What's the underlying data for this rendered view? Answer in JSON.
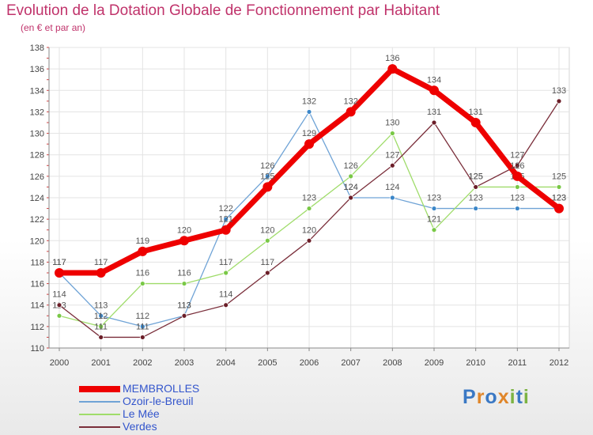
{
  "title": "Evolution de la Dotation Globale de Fonctionnement par Habitant",
  "subtitle": "(en € et par an)",
  "logo": {
    "letters": [
      {
        "ch": "P",
        "color": "#3a78c4"
      },
      {
        "ch": "r",
        "color": "#e0862a"
      },
      {
        "ch": "o",
        "color": "#3a78c4"
      },
      {
        "ch": "x",
        "color": "#e0862a"
      },
      {
        "ch": "i",
        "color": "#7cb342"
      },
      {
        "ch": "t",
        "color": "#3a78c4"
      },
      {
        "ch": "i",
        "color": "#7cb342"
      }
    ]
  },
  "chart_data": {
    "type": "line",
    "title": "Evolution de la Dotation Globale de Fonctionnement par Habitant",
    "subtitle": "(en € et par an)",
    "x": [
      "2000",
      "2001",
      "2002",
      "2003",
      "2004",
      "2005",
      "2006",
      "2007",
      "2008",
      "2009",
      "2010",
      "2011",
      "2012"
    ],
    "ylim": [
      110,
      138
    ],
    "yticks": [
      110,
      112,
      114,
      116,
      118,
      120,
      122,
      124,
      126,
      128,
      130,
      132,
      134,
      136,
      138
    ],
    "grid": true,
    "legend": "bottom-left",
    "series": [
      {
        "name": "MEMBROLLES",
        "color": "#ee0000",
        "values": [
          117,
          117,
          119,
          120,
          121,
          125,
          129,
          132,
          136,
          134,
          131,
          126,
          123
        ]
      },
      {
        "name": "Ozoir-le-Breuil",
        "color": "#6fa3d6",
        "marker": "#3b86c8",
        "values": [
          117,
          113,
          112,
          113,
          122,
          126,
          132,
          124,
          124,
          123,
          123,
          123,
          123
        ]
      },
      {
        "name": "Le Mée",
        "color": "#9fdc6a",
        "marker": "#79c846",
        "values": [
          113,
          112,
          116,
          116,
          117,
          120,
          123,
          126,
          130,
          121,
          125,
          125,
          125
        ]
      },
      {
        "name": "Verdes",
        "color": "#7a2e3a",
        "marker": "#6b1e28",
        "values": [
          114,
          111,
          111,
          113,
          114,
          117,
          120,
          124,
          127,
          131,
          125,
          127,
          133
        ]
      }
    ]
  }
}
